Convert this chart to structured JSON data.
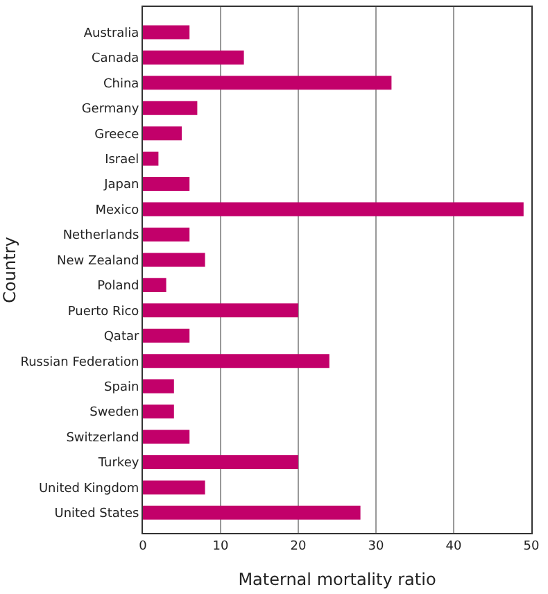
{
  "chart_data": {
    "type": "bar",
    "orientation": "horizontal",
    "xlabel": "Maternal mortality ratio",
    "ylabel": "Country",
    "categories": [
      "Australia",
      "Canada",
      "China",
      "Germany",
      "Greece",
      "Israel",
      "Japan",
      "Mexico",
      "Netherlands",
      "New Zealand",
      "Poland",
      "Puerto Rico",
      "Qatar",
      "Russian Federation",
      "Spain",
      "Sweden",
      "Switzerland",
      "Turkey",
      "United Kingdom",
      "United States"
    ],
    "values": [
      6,
      13,
      32,
      7,
      5,
      2,
      6,
      49,
      6,
      8,
      3,
      20,
      6,
      24,
      4,
      4,
      6,
      20,
      8,
      28
    ],
    "color": "#c2006a",
    "xlim": [
      0,
      50
    ],
    "xticks": [
      0,
      10,
      20,
      30,
      40,
      50
    ],
    "grid": "x"
  }
}
